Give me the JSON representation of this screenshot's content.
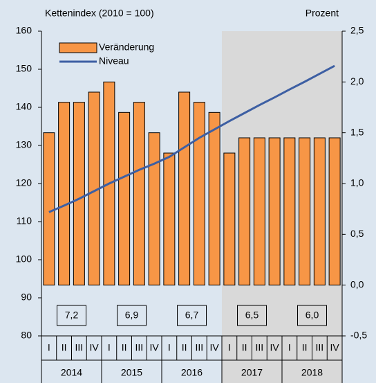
{
  "chart_data": {
    "type": "bar_line",
    "y_label": "Kettenindex (2010 = 100)",
    "y2_label": "Prozent",
    "categories": [
      "I",
      "II",
      "III",
      "IV",
      "I",
      "II",
      "III",
      "IV",
      "I",
      "II",
      "III",
      "IV",
      "I",
      "II",
      "III",
      "IV",
      "I",
      "II",
      "III",
      "IV"
    ],
    "years": [
      "2014",
      "2015",
      "2016",
      "2017",
      "2018"
    ],
    "annual_labels": [
      "7,2",
      "6,9",
      "6,7",
      "6,5",
      "6,0"
    ],
    "shaded_from_year": "2017",
    "series": [
      {
        "name": "Veränderung",
        "type": "bar",
        "axis": "y2",
        "color": "#f79646",
        "values": [
          1.5,
          1.8,
          1.8,
          1.9,
          2.0,
          1.7,
          1.8,
          1.5,
          1.3,
          1.9,
          1.8,
          1.7,
          1.3,
          1.45,
          1.45,
          1.45,
          1.45,
          1.45,
          1.45,
          1.45
        ]
      },
      {
        "name": "Niveau",
        "type": "line",
        "axis": "y",
        "color": "#3d5fa3",
        "values": [
          112.5,
          114.2,
          116,
          118,
          120,
          121.8,
          123.6,
          125.2,
          127,
          129.5,
          132,
          134.2,
          136.4,
          138.5,
          140.6,
          142.6,
          144.7,
          146.7,
          148.8,
          150.9
        ]
      }
    ],
    "ylim": [
      80,
      160
    ],
    "yticks": [
      80,
      90,
      100,
      110,
      120,
      130,
      140,
      150,
      160
    ],
    "y2lim": [
      -0.5,
      2.5
    ],
    "y2ticks": [
      {
        "value": -0.5,
        "label": "-0,5"
      },
      {
        "value": 0,
        "label": "0,0"
      },
      {
        "value": 0.5,
        "label": "0,5"
      },
      {
        "value": 1,
        "label": "1,0"
      },
      {
        "value": 1.5,
        "label": "1,5"
      },
      {
        "value": 2,
        "label": "2,0"
      },
      {
        "value": 2.5,
        "label": "2,5"
      }
    ]
  }
}
